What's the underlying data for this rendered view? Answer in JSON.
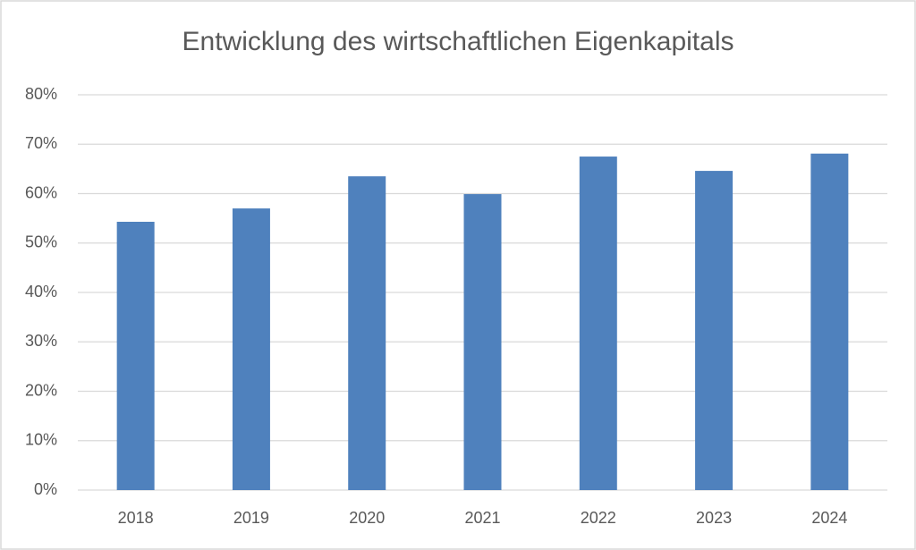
{
  "chart_data": {
    "type": "bar",
    "title": "Entwicklung des wirtschaftlichen Eigenkapitals",
    "categories": [
      "2018",
      "2019",
      "2020",
      "2021",
      "2022",
      "2023",
      "2024"
    ],
    "values": [
      54.3,
      57.0,
      63.5,
      59.9,
      67.5,
      64.6,
      68.1
    ],
    "color": "#4f81bd",
    "ylim": [
      0,
      80
    ],
    "yticks": [
      {
        "value": 0,
        "label": "0%"
      },
      {
        "value": 10,
        "label": "10%"
      },
      {
        "value": 20,
        "label": "20%"
      },
      {
        "value": 30,
        "label": "30%"
      },
      {
        "value": 40,
        "label": "40%"
      },
      {
        "value": 50,
        "label": "50%"
      },
      {
        "value": 60,
        "label": "60%"
      },
      {
        "value": 70,
        "label": "70%"
      },
      {
        "value": 80,
        "label": "80%"
      }
    ],
    "grid": true
  }
}
